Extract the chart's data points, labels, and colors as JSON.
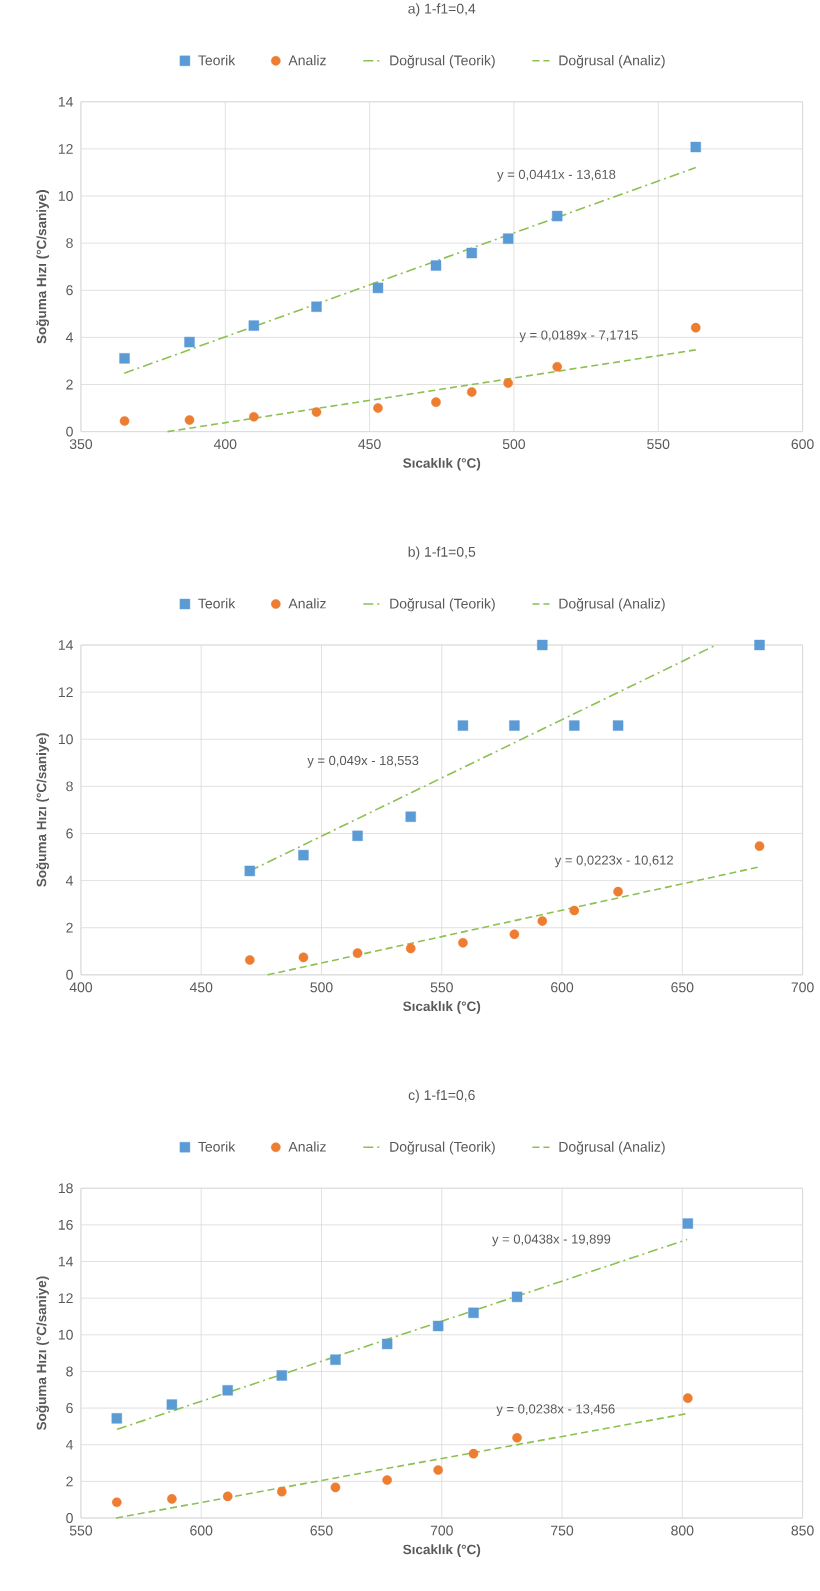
{
  "chart_data": [
    {
      "type": "scatter",
      "title": "a) 1-f1=0,4",
      "xlabel": "Sıcaklık (°C)",
      "ylabel": "Soğuma Hızı (°C/saniye)",
      "xlim": [
        350,
        600
      ],
      "ylim": [
        0,
        14
      ],
      "xticks": [
        350,
        400,
        450,
        500,
        550,
        600
      ],
      "yticks": [
        0,
        2,
        4,
        6,
        8,
        10,
        12,
        14
      ],
      "grid": true,
      "legend": "top",
      "series": [
        {
          "name": "Teorik",
          "marker": "square",
          "color": "#5b9bd5",
          "x": [
            365.1,
            387.6,
            409.9,
            431.6,
            452.9,
            473,
            485.4,
            498,
            515,
            563
          ],
          "values": [
            3.11,
            3.8,
            4.5,
            5.3,
            6.1,
            7.05,
            7.58,
            8.19,
            9.15,
            12.08
          ]
        },
        {
          "name": "Analiz",
          "marker": "circle",
          "color": "#ed7d31",
          "x": [
            365.1,
            387.6,
            409.9,
            431.6,
            452.9,
            473,
            485.4,
            498,
            515,
            563
          ],
          "values": [
            0.45,
            0.49,
            0.63,
            0.83,
            1.0,
            1.25,
            1.68,
            2.06,
            2.75,
            4.41
          ]
        },
        {
          "name": "Doğrusal (Teorik)",
          "type": "line",
          "marker": "none",
          "line_style": "dashdot",
          "color": "#8cc152",
          "x": [
            365,
            563
          ],
          "values": [
            2.48,
            11.21
          ]
        },
        {
          "name": "Doğrusal (Analiz)",
          "type": "line",
          "marker": "none",
          "line_style": "dashed",
          "color": "#8cc152",
          "x": [
            380,
            563
          ],
          "values": [
            0,
            3.47
          ]
        }
      ],
      "annotations": [
        "y = 0,0441x - 13,618",
        "y = 0,0189x - 7,1715"
      ]
    },
    {
      "type": "scatter",
      "title": "b) 1-f1=0,5",
      "xlabel": "Sıcaklık (°C)",
      "ylabel": "Soğuma Hızı (°C/saniye)",
      "xlim": [
        400,
        700
      ],
      "ylim": [
        0,
        14
      ],
      "xticks": [
        400,
        450,
        500,
        550,
        600,
        650,
        700
      ],
      "yticks": [
        0,
        2,
        4,
        6,
        8,
        10,
        12,
        14
      ],
      "grid": true,
      "legend": "top",
      "series": [
        {
          "name": "Teorik",
          "marker": "square",
          "color": "#5b9bd5",
          "x": [
            470.2,
            492.5,
            515,
            537.1,
            558.8,
            580.2,
            591.8,
            605.1,
            623.3,
            682.1
          ],
          "values": [
            4.41,
            5.08,
            5.9,
            6.71,
            10.58,
            10.58,
            14.0,
            10.58,
            10.58,
            14.0
          ]
        },
        {
          "name": "Analiz",
          "marker": "circle",
          "color": "#ed7d31",
          "x": [
            470.2,
            492.5,
            515,
            537.1,
            558.8,
            580.2,
            591.8,
            605.1,
            623.3,
            682.1
          ],
          "values": [
            0.63,
            0.74,
            0.92,
            1.12,
            1.36,
            1.72,
            2.28,
            2.73,
            3.53,
            5.46
          ]
        },
        {
          "name": "Doğrusal (Teorik)",
          "type": "line",
          "marker": "none",
          "line_style": "dashdot",
          "color": "#8cc152",
          "x": [
            470,
            664
          ],
          "values": [
            4.4,
            14.0
          ]
        },
        {
          "name": "Doğrusal (Analiz)",
          "type": "line",
          "marker": "none",
          "line_style": "dashed",
          "color": "#8cc152",
          "x": [
            477.6,
            682
          ],
          "values": [
            0,
            4.58
          ]
        }
      ],
      "annotations": [
        "y = 0,049x - 18,553",
        "y = 0,0223x - 10,612"
      ]
    },
    {
      "type": "scatter",
      "title": "c) 1-f1=0,6",
      "xlabel": "Sıcaklık (°C)",
      "ylabel": "Soğuma Hızı (°C/saniye)",
      "xlim": [
        550,
        850
      ],
      "ylim": [
        0,
        18
      ],
      "xticks": [
        550,
        600,
        650,
        700,
        750,
        800,
        850
      ],
      "yticks": [
        0,
        2,
        4,
        6,
        8,
        10,
        12,
        14,
        16,
        18
      ],
      "grid": true,
      "legend": "top",
      "series": [
        {
          "name": "Teorik",
          "marker": "square",
          "color": "#5b9bd5",
          "x": [
            564.9,
            587.8,
            611,
            633.5,
            655.8,
            677.3,
            698.5,
            713.2,
            731.3,
            802.3
          ],
          "values": [
            5.44,
            6.19,
            6.97,
            7.78,
            8.64,
            9.5,
            10.48,
            11.2,
            12.07,
            16.07
          ]
        },
        {
          "name": "Analiz",
          "marker": "circle",
          "color": "#ed7d31",
          "x": [
            564.9,
            587.8,
            611,
            633.5,
            655.8,
            677.3,
            698.5,
            713.2,
            731.3,
            802.3
          ],
          "values": [
            0.86,
            1.04,
            1.18,
            1.44,
            1.67,
            2.07,
            2.62,
            3.51,
            4.38,
            6.54
          ]
        },
        {
          "name": "Doğrusal (Teorik)",
          "type": "line",
          "marker": "none",
          "line_style": "dashdot",
          "color": "#8cc152",
          "x": [
            565,
            802
          ],
          "values": [
            4.84,
            15.2
          ]
        },
        {
          "name": "Doğrusal (Analiz)",
          "type": "line",
          "marker": "none",
          "line_style": "dashed",
          "color": "#8cc152",
          "x": [
            564.6,
            802
          ],
          "values": [
            0,
            5.7
          ]
        }
      ],
      "annotations": [
        "y = 0,0438x - 19,899",
        "y = 0,0238x - 13,456"
      ]
    }
  ]
}
